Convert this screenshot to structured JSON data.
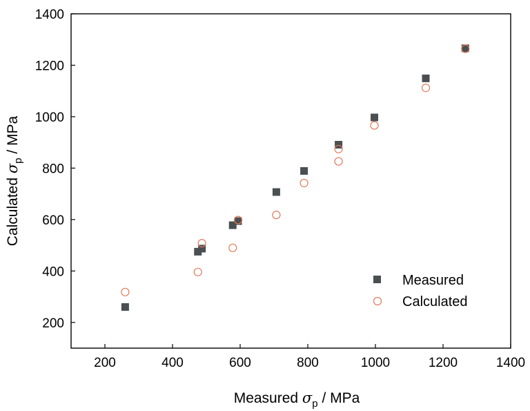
{
  "chart_data": {
    "type": "scatter",
    "title": "",
    "xlabel": {
      "prefix": "Measured ",
      "symbol": "σ",
      "subscript": "p",
      "suffix": " / MPa"
    },
    "ylabel": {
      "prefix": "Calculated ",
      "symbol": "σ",
      "subscript": "p",
      "suffix": " / MPa"
    },
    "xlim": [
      100,
      1400
    ],
    "ylim": [
      100,
      1400
    ],
    "xticks": [
      200,
      400,
      600,
      800,
      1000,
      1200,
      1400
    ],
    "yticks": [
      200,
      400,
      600,
      800,
      1000,
      1200,
      1400
    ],
    "grid": false,
    "legend_position": "bottom-right",
    "series": [
      {
        "name": "Measured",
        "marker": "filled-square",
        "color": "#4a4f52",
        "x": [
          260,
          475,
          487,
          578,
          594,
          707,
          789,
          891,
          997,
          1149,
          1266
        ],
        "y": [
          260,
          475,
          487,
          578,
          594,
          707,
          789,
          891,
          997,
          1149,
          1266
        ]
      },
      {
        "name": "Calculated",
        "marker": "open-circle",
        "color": "#e07a5a",
        "x": [
          260,
          475,
          487,
          578,
          594,
          707,
          789,
          891,
          891,
          997,
          1149,
          1266
        ],
        "y": [
          318,
          396,
          508,
          490,
          598,
          618,
          742,
          826,
          874,
          966,
          1112,
          1264
        ]
      }
    ]
  }
}
